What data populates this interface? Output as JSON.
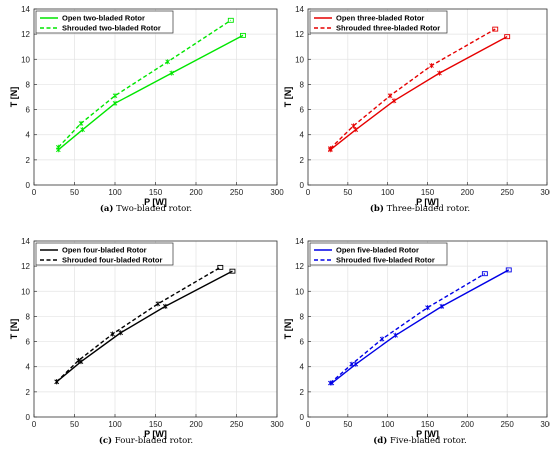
{
  "chart_data": [
    {
      "type": "line",
      "caption_tag": "(a)",
      "caption_text": " Two-bladed rotor.",
      "xlabel": "P [W]",
      "ylabel": "T [N]",
      "xlim": [
        0,
        300
      ],
      "ylim": [
        0,
        14
      ],
      "xticks": [
        0,
        50,
        100,
        150,
        200,
        250,
        300
      ],
      "yticks": [
        0,
        2,
        4,
        6,
        8,
        10,
        12,
        14
      ],
      "grid": true,
      "legend_position": "top-left",
      "color": "#00e600",
      "series": [
        {
          "name": "Open two-bladed Rotor",
          "style": "solid",
          "x": [
            30,
            60,
            100,
            170,
            258
          ],
          "y": [
            2.8,
            4.4,
            6.5,
            8.9,
            11.9
          ]
        },
        {
          "name": "Shrouded two-bladed Rotor",
          "style": "dashed",
          "x": [
            30,
            58,
            100,
            165,
            243
          ],
          "y": [
            3.0,
            4.9,
            7.1,
            9.8,
            13.1
          ]
        }
      ]
    },
    {
      "type": "line",
      "caption_tag": "(b)",
      "caption_text": " Three-bladed rotor.",
      "xlabel": "P [W]",
      "ylabel": "T [N]",
      "xlim": [
        0,
        300
      ],
      "ylim": [
        0,
        14
      ],
      "xticks": [
        0,
        50,
        100,
        150,
        200,
        250,
        300
      ],
      "yticks": [
        0,
        2,
        4,
        6,
        8,
        10,
        12,
        14
      ],
      "grid": true,
      "legend_position": "top-left",
      "color": "#e60000",
      "series": [
        {
          "name": "Open three-bladed Rotor",
          "style": "solid",
          "x": [
            28,
            60,
            108,
            165,
            250
          ],
          "y": [
            2.8,
            4.4,
            6.7,
            8.9,
            11.8
          ]
        },
        {
          "name": "Shrouded three-bladed Rotor",
          "style": "dashed",
          "x": [
            28,
            57,
            103,
            155,
            235
          ],
          "y": [
            2.9,
            4.7,
            7.1,
            9.5,
            12.4
          ]
        }
      ]
    },
    {
      "type": "line",
      "caption_tag": "(c)",
      "caption_text": " Four-bladed rotor.",
      "xlabel": "P [W]",
      "ylabel": "T [N]",
      "xlim": [
        0,
        300
      ],
      "ylim": [
        0,
        14
      ],
      "xticks": [
        0,
        50,
        100,
        150,
        200,
        250,
        300
      ],
      "yticks": [
        0,
        2,
        4,
        6,
        8,
        10,
        12,
        14
      ],
      "grid": true,
      "legend_position": "top-left",
      "color": "#000000",
      "series": [
        {
          "name": "Open four-bladed Rotor",
          "style": "solid",
          "x": [
            28,
            58,
            107,
            162,
            245
          ],
          "y": [
            2.8,
            4.4,
            6.7,
            8.8,
            11.6
          ]
        },
        {
          "name": "Shrouded four-bladed Rotor",
          "style": "dashed",
          "x": [
            28,
            55,
            97,
            153,
            230
          ],
          "y": [
            2.8,
            4.5,
            6.6,
            9.0,
            11.9
          ]
        }
      ]
    },
    {
      "type": "line",
      "caption_tag": "(d)",
      "caption_text": " Five-bladed rotor.",
      "xlabel": "P [W]",
      "ylabel": "T [N]",
      "xlim": [
        0,
        300
      ],
      "ylim": [
        0,
        14
      ],
      "xticks": [
        0,
        50,
        100,
        150,
        200,
        250,
        300
      ],
      "yticks": [
        0,
        2,
        4,
        6,
        8,
        10,
        12,
        14
      ],
      "grid": true,
      "legend_position": "top-left",
      "color": "#0000e6",
      "series": [
        {
          "name": "Open five-bladed Rotor",
          "style": "solid",
          "x": [
            30,
            60,
            110,
            168,
            252
          ],
          "y": [
            2.7,
            4.2,
            6.5,
            8.8,
            11.7
          ]
        },
        {
          "name": "Shrouded five-bladed Rotor",
          "style": "dashed",
          "x": [
            28,
            55,
            93,
            150,
            222
          ],
          "y": [
            2.7,
            4.2,
            6.2,
            8.7,
            11.4
          ]
        }
      ]
    }
  ]
}
